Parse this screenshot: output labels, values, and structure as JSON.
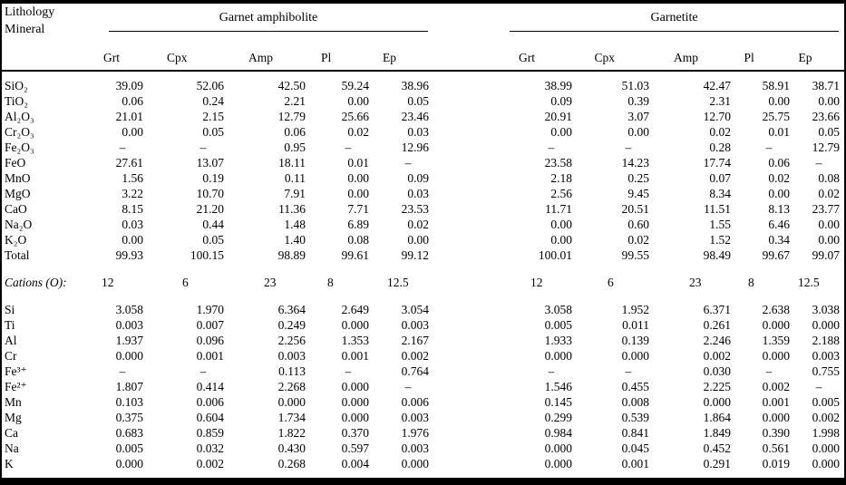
{
  "table": {
    "corner_line1": "Lithology",
    "corner_line2": "Mineral",
    "groups": [
      "Garnet amphibolite",
      "Garnetite"
    ],
    "minerals": [
      "Grt",
      "Cpx",
      "Amp",
      "Pl",
      "Ep",
      "Grt",
      "Cpx",
      "Amp",
      "Pl",
      "Ep"
    ],
    "text_color": "#000000",
    "background_color": "#ffffff",
    "sections": [
      {
        "name": "oxides",
        "rows": [
          {
            "label": "SiO₂",
            "values": [
              "39.09",
              "52.06",
              "42.50",
              "59.24",
              "38.96",
              "38.99",
              "51.03",
              "42.47",
              "58.91",
              "38.71"
            ]
          },
          {
            "label": "TiO₂",
            "values": [
              "0.06",
              "0.24",
              "2.21",
              "0.00",
              "0.05",
              "0.09",
              "0.39",
              "2.31",
              "0.00",
              "0.00"
            ]
          },
          {
            "label": "Al₂O₃",
            "values": [
              "21.01",
              "2.15",
              "12.79",
              "25.66",
              "23.46",
              "20.91",
              "3.07",
              "12.70",
              "25.75",
              "23.66"
            ]
          },
          {
            "label": "Cr₂O₃",
            "values": [
              "0.00",
              "0.05",
              "0.06",
              "0.02",
              "0.03",
              "0.00",
              "0.00",
              "0.02",
              "0.01",
              "0.05"
            ]
          },
          {
            "label": "Fe₂O₃",
            "values": [
              "–",
              "–",
              "0.95",
              "–",
              "12.96",
              "–",
              "–",
              "0.28",
              "–",
              "12.79"
            ]
          },
          {
            "label": "FeO",
            "values": [
              "27.61",
              "13.07",
              "18.11",
              "0.01",
              "–",
              "23.58",
              "14.23",
              "17.74",
              "0.06",
              "–"
            ]
          },
          {
            "label": "MnO",
            "values": [
              "1.56",
              "0.19",
              "0.11",
              "0.00",
              "0.09",
              "2.18",
              "0.25",
              "0.07",
              "0.02",
              "0.08"
            ]
          },
          {
            "label": "MgO",
            "values": [
              "3.22",
              "10.70",
              "7.91",
              "0.00",
              "0.03",
              "2.56",
              "9.45",
              "8.34",
              "0.00",
              "0.02"
            ]
          },
          {
            "label": "CaO",
            "values": [
              "8.15",
              "21.20",
              "11.36",
              "7.71",
              "23.53",
              "11.71",
              "20.51",
              "11.51",
              "8.13",
              "23.77"
            ]
          },
          {
            "label": "Na₂O",
            "values": [
              "0.03",
              "0.44",
              "1.48",
              "6.89",
              "0.02",
              "0.00",
              "0.60",
              "1.55",
              "6.46",
              "0.00"
            ]
          },
          {
            "label": "K₂O",
            "values": [
              "0.00",
              "0.05",
              "1.40",
              "0.08",
              "0.00",
              "0.00",
              "0.02",
              "1.52",
              "0.34",
              "0.00"
            ]
          },
          {
            "label": "Total",
            "values": [
              "99.93",
              "100.15",
              "98.89",
              "99.61",
              "99.12",
              "100.01",
              "99.55",
              "98.49",
              "99.67",
              "99.07"
            ]
          }
        ]
      },
      {
        "name": "cations_o",
        "left_align": true,
        "rows": [
          {
            "label": "Cations (O):",
            "italic": true,
            "values": [
              "12",
              "6",
              "23",
              "8",
              "12.5",
              "12",
              "6",
              "23",
              "8",
              "12.5"
            ]
          }
        ]
      },
      {
        "name": "cations",
        "rows": [
          {
            "label": "Si",
            "values": [
              "3.058",
              "1.970",
              "6.364",
              "2.649",
              "3.054",
              "3.058",
              "1.952",
              "6.371",
              "2.638",
              "3.038"
            ]
          },
          {
            "label": "Ti",
            "values": [
              "0.003",
              "0.007",
              "0.249",
              "0.000",
              "0.003",
              "0.005",
              "0.011",
              "0.261",
              "0.000",
              "0.000"
            ]
          },
          {
            "label": "Al",
            "values": [
              "1.937",
              "0.096",
              "2.256",
              "1.353",
              "2.167",
              "1.933",
              "0.139",
              "2.246",
              "1.359",
              "2.188"
            ]
          },
          {
            "label": "Cr",
            "values": [
              "0.000",
              "0.001",
              "0.003",
              "0.001",
              "0.002",
              "0.000",
              "0.000",
              "0.002",
              "0.000",
              "0.003"
            ]
          },
          {
            "label": "Fe³⁺",
            "values": [
              "–",
              "–",
              "0.113",
              "–",
              "0.764",
              "–",
              "–",
              "0.030",
              "–",
              "0.755"
            ]
          },
          {
            "label": "Fe²⁺",
            "values": [
              "1.807",
              "0.414",
              "2.268",
              "0.000",
              "–",
              "1.546",
              "0.455",
              "2.225",
              "0.002",
              "–"
            ]
          },
          {
            "label": "Mn",
            "values": [
              "0.103",
              "0.006",
              "0.000",
              "0.000",
              "0.006",
              "0.145",
              "0.008",
              "0.000",
              "0.001",
              "0.005"
            ]
          },
          {
            "label": "Mg",
            "values": [
              "0.375",
              "0.604",
              "1.734",
              "0.000",
              "0.003",
              "0.299",
              "0.539",
              "1.864",
              "0.000",
              "0.002"
            ]
          },
          {
            "label": "Ca",
            "values": [
              "0.683",
              "0.859",
              "1.822",
              "0.370",
              "1.976",
              "0.984",
              "0.841",
              "1.849",
              "0.390",
              "1.998"
            ]
          },
          {
            "label": "Na",
            "values": [
              "0.005",
              "0.032",
              "0.430",
              "0.597",
              "0.003",
              "0.000",
              "0.045",
              "0.452",
              "0.561",
              "0.000"
            ]
          },
          {
            "label": "K",
            "values": [
              "0.000",
              "0.002",
              "0.268",
              "0.004",
              "0.000",
              "0.000",
              "0.001",
              "0.291",
              "0.019",
              "0.000"
            ]
          }
        ]
      }
    ]
  }
}
